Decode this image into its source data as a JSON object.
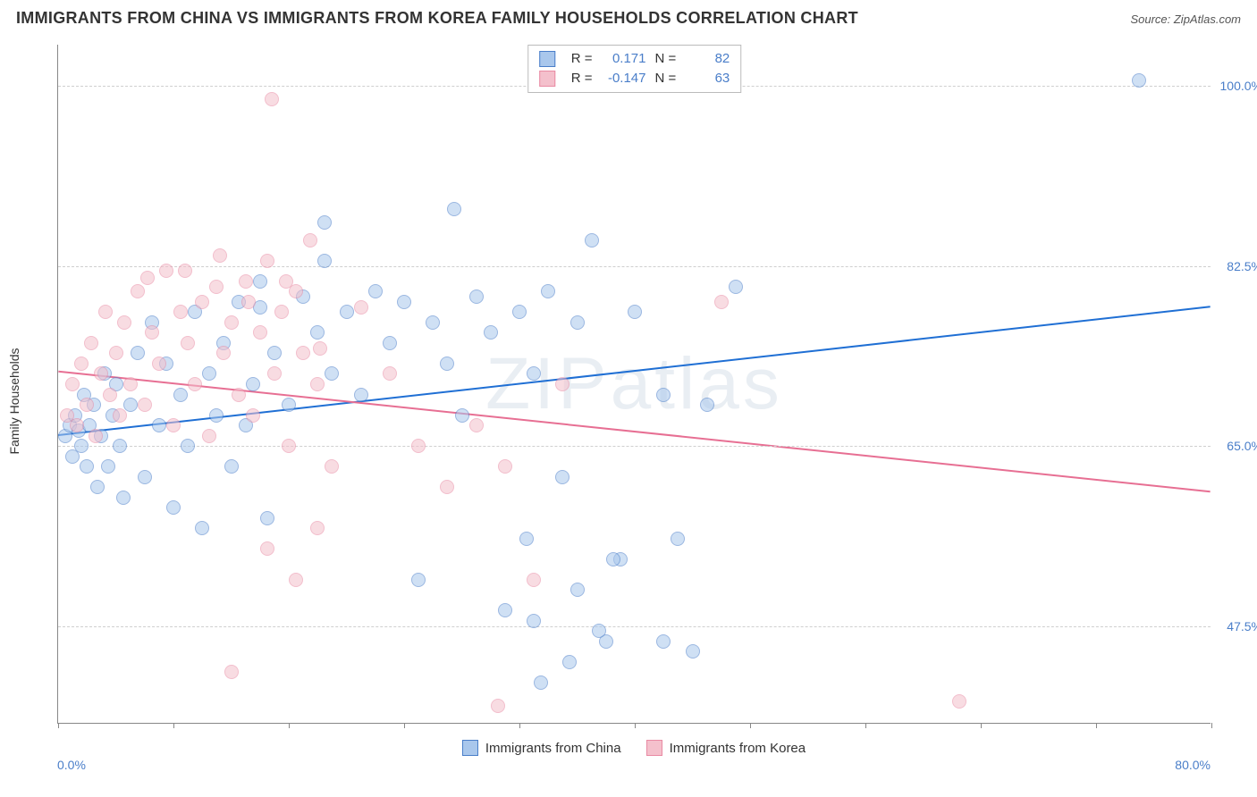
{
  "title": "IMMIGRANTS FROM CHINA VS IMMIGRANTS FROM KOREA FAMILY HOUSEHOLDS CORRELATION CHART",
  "source": "Source: ZipAtlas.com",
  "watermark": "ZIPatlas",
  "ylabel": "Family Households",
  "chart": {
    "type": "scatter-with-regression",
    "xlim": [
      0,
      80
    ],
    "ylim": [
      38,
      104
    ],
    "xtick_positions": [
      0,
      8,
      16,
      24,
      32,
      40,
      48,
      56,
      64,
      72,
      80
    ],
    "xtick_labels": {
      "min": "0.0%",
      "max": "80.0%"
    },
    "ytick_positions": [
      47.5,
      65.0,
      82.5,
      100.0
    ],
    "ytick_labels": [
      "47.5%",
      "65.0%",
      "82.5%",
      "100.0%"
    ],
    "background_color": "#ffffff",
    "grid_color": "#cfcfcf",
    "axis_color": "#888888",
    "tick_label_color": "#4a7ec9",
    "marker_radius": 8,
    "marker_opacity": 0.55,
    "series": [
      {
        "name": "Immigrants from China",
        "fill": "#a9c7ec",
        "stroke": "#4a7ec9",
        "line_color": "#1f6fd4",
        "line_width": 2,
        "R": "0.171",
        "N": "82",
        "regression": {
          "x1": 0,
          "y1": 66,
          "x2": 80,
          "y2": 78.5
        },
        "points": [
          [
            0.5,
            66
          ],
          [
            0.8,
            67
          ],
          [
            1.0,
            64
          ],
          [
            1.2,
            68
          ],
          [
            1.4,
            66.5
          ],
          [
            1.6,
            65
          ],
          [
            1.8,
            70
          ],
          [
            2.0,
            63
          ],
          [
            2.2,
            67
          ],
          [
            2.5,
            69
          ],
          [
            2.7,
            61
          ],
          [
            3.0,
            66
          ],
          [
            3.2,
            72
          ],
          [
            3.5,
            63
          ],
          [
            3.8,
            68
          ],
          [
            4.0,
            71
          ],
          [
            4.3,
            65
          ],
          [
            4.5,
            60
          ],
          [
            5.0,
            69
          ],
          [
            5.5,
            74
          ],
          [
            6.0,
            62
          ],
          [
            6.5,
            77
          ],
          [
            7.0,
            67
          ],
          [
            7.5,
            73
          ],
          [
            8.0,
            59
          ],
          [
            8.5,
            70
          ],
          [
            9.0,
            65
          ],
          [
            9.5,
            78
          ],
          [
            10.0,
            57
          ],
          [
            10.5,
            72
          ],
          [
            11.0,
            68
          ],
          [
            11.5,
            75
          ],
          [
            12.0,
            63
          ],
          [
            12.5,
            79
          ],
          [
            13.0,
            67
          ],
          [
            13.5,
            71
          ],
          [
            14.0,
            81
          ],
          [
            14.5,
            58
          ],
          [
            15.0,
            74
          ],
          [
            16.0,
            69
          ],
          [
            17.0,
            79.5
          ],
          [
            18.0,
            76
          ],
          [
            18.5,
            83
          ],
          [
            19.0,
            72
          ],
          [
            20.0,
            78
          ],
          [
            21.0,
            70
          ],
          [
            22.0,
            80
          ],
          [
            23.0,
            75
          ],
          [
            24.0,
            79
          ],
          [
            25.0,
            52
          ],
          [
            26.0,
            77
          ],
          [
            27.0,
            73
          ],
          [
            27.5,
            88
          ],
          [
            28.0,
            68
          ],
          [
            29.0,
            79.5
          ],
          [
            30.0,
            76
          ],
          [
            31.0,
            49
          ],
          [
            32.0,
            78
          ],
          [
            33.0,
            72
          ],
          [
            34.0,
            80
          ],
          [
            35.0,
            62
          ],
          [
            36.0,
            77
          ],
          [
            37.0,
            85
          ],
          [
            38.0,
            46
          ],
          [
            32.5,
            56
          ],
          [
            33.5,
            42
          ],
          [
            35.5,
            44
          ],
          [
            37.5,
            47
          ],
          [
            39.0,
            54
          ],
          [
            40.0,
            78
          ],
          [
            42.0,
            70
          ],
          [
            44.0,
            45
          ],
          [
            45.0,
            69
          ],
          [
            47.0,
            80.5
          ],
          [
            33.0,
            48
          ],
          [
            36.0,
            51
          ],
          [
            38.5,
            54
          ],
          [
            42.0,
            46
          ],
          [
            43.0,
            56
          ],
          [
            75.0,
            100.5
          ],
          [
            18.5,
            86.7
          ],
          [
            14.0,
            78.5
          ]
        ]
      },
      {
        "name": "Immigrants from Korea",
        "fill": "#f4c0cc",
        "stroke": "#e98aa3",
        "line_color": "#e76f93",
        "line_width": 2,
        "R": "-0.147",
        "N": "63",
        "regression": {
          "x1": 0,
          "y1": 72.2,
          "x2": 80,
          "y2": 60.5
        },
        "points": [
          [
            0.6,
            68
          ],
          [
            1.0,
            71
          ],
          [
            1.3,
            67
          ],
          [
            1.6,
            73
          ],
          [
            2.0,
            69
          ],
          [
            2.3,
            75
          ],
          [
            2.6,
            66
          ],
          [
            3.0,
            72
          ],
          [
            3.3,
            78
          ],
          [
            3.6,
            70
          ],
          [
            4.0,
            74
          ],
          [
            4.3,
            68
          ],
          [
            4.6,
            77
          ],
          [
            5.0,
            71
          ],
          [
            5.5,
            80
          ],
          [
            6.0,
            69
          ],
          [
            6.5,
            76
          ],
          [
            7.0,
            73
          ],
          [
            7.5,
            82
          ],
          [
            8.0,
            67
          ],
          [
            8.5,
            78
          ],
          [
            9.0,
            75
          ],
          [
            9.5,
            71
          ],
          [
            10.0,
            79
          ],
          [
            10.5,
            66
          ],
          [
            11.0,
            80.5
          ],
          [
            11.5,
            74
          ],
          [
            12.0,
            77
          ],
          [
            12.5,
            70
          ],
          [
            13.0,
            81
          ],
          [
            13.5,
            68
          ],
          [
            14.0,
            76
          ],
          [
            14.5,
            83
          ],
          [
            15.0,
            72
          ],
          [
            15.5,
            78
          ],
          [
            16.0,
            65
          ],
          [
            16.5,
            80
          ],
          [
            17.0,
            74
          ],
          [
            17.5,
            85
          ],
          [
            18.0,
            71
          ],
          [
            6.2,
            81.3
          ],
          [
            8.8,
            82
          ],
          [
            11.2,
            83.5
          ],
          [
            13.2,
            79
          ],
          [
            15.8,
            81
          ],
          [
            18.2,
            74.5
          ],
          [
            19.0,
            63
          ],
          [
            21.0,
            78.5
          ],
          [
            23.0,
            72
          ],
          [
            25.0,
            65
          ],
          [
            27.0,
            61
          ],
          [
            29.0,
            67
          ],
          [
            30.5,
            39.7
          ],
          [
            31.0,
            63
          ],
          [
            33.0,
            52
          ],
          [
            35.0,
            71
          ],
          [
            12.0,
            43
          ],
          [
            14.5,
            55
          ],
          [
            16.5,
            52
          ],
          [
            18.0,
            57
          ],
          [
            14.8,
            98.7
          ],
          [
            46.0,
            79
          ],
          [
            62.5,
            40.2
          ]
        ]
      }
    ]
  },
  "bottom_legend": [
    {
      "label": "Immigrants from China",
      "fill": "#a9c7ec",
      "stroke": "#4a7ec9"
    },
    {
      "label": "Immigrants from Korea",
      "fill": "#f4c0cc",
      "stroke": "#e98aa3"
    }
  ]
}
